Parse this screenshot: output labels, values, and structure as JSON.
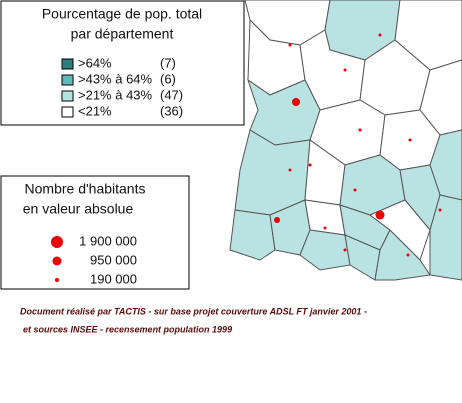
{
  "legend_share": {
    "title": [
      "Pourcentage de pop. total",
      "par département"
    ],
    "items": [
      {
        "label": ">64%",
        "count": "(7)"
      },
      {
        "label": ">43% à 64%",
        "count": "(6)"
      },
      {
        "label": ">21% à 43%",
        "count": "(47)"
      },
      {
        "label": "<21%",
        "count": "(36)"
      }
    ]
  },
  "legend_population": {
    "title": [
      "Nombre d'habitants",
      "en valeur absolue"
    ],
    "items": [
      "1 900 000",
      "950 000",
      "190 000"
    ]
  },
  "footer": [
    "Document réalisé par TACTIS - sur base projet couverture ADSL FT janvier 2001 -",
    "et sources INSEE - recensement population 1999"
  ]
}
